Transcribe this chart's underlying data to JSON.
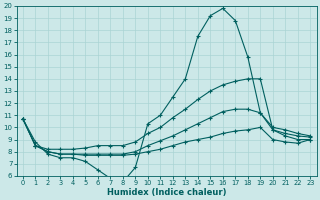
{
  "xlabel": "Humidex (Indice chaleur)",
  "xlim": [
    -0.5,
    23.5
  ],
  "ylim": [
    6,
    20
  ],
  "yticks": [
    6,
    7,
    8,
    9,
    10,
    11,
    12,
    13,
    14,
    15,
    16,
    17,
    18,
    19,
    20
  ],
  "xticks": [
    0,
    1,
    2,
    3,
    4,
    5,
    6,
    7,
    8,
    9,
    10,
    11,
    12,
    13,
    14,
    15,
    16,
    17,
    18,
    19,
    20,
    21,
    22,
    23
  ],
  "bg_color": "#cce8e8",
  "line_color": "#005f5f",
  "grid_color": "#aad4d4",
  "lines": [
    {
      "x": [
        0,
        1,
        2,
        3,
        4,
        5,
        6,
        7,
        8,
        9,
        10,
        11,
        12,
        13,
        14,
        15,
        16,
        17,
        18,
        19,
        20,
        21,
        22,
        23
      ],
      "y": [
        10.7,
        8.8,
        7.8,
        7.5,
        7.5,
        7.2,
        6.5,
        5.8,
        5.5,
        6.7,
        10.3,
        11.0,
        12.5,
        14.0,
        17.5,
        19.2,
        19.8,
        18.8,
        15.8,
        11.2,
        10.0,
        9.8,
        9.5,
        9.3
      ]
    },
    {
      "x": [
        0,
        1,
        2,
        3,
        4,
        5,
        6,
        7,
        8,
        9,
        10,
        11,
        12,
        13,
        14,
        15,
        16,
        17,
        18,
        19,
        20,
        21,
        22,
        23
      ],
      "y": [
        10.7,
        8.5,
        8.2,
        8.2,
        8.2,
        8.3,
        8.5,
        8.5,
        8.5,
        8.8,
        9.5,
        10.0,
        10.8,
        11.5,
        12.3,
        13.0,
        13.5,
        13.8,
        14.0,
        14.0,
        9.8,
        9.5,
        9.3,
        9.2
      ]
    },
    {
      "x": [
        0,
        1,
        2,
        3,
        4,
        5,
        6,
        7,
        8,
        9,
        10,
        11,
        12,
        13,
        14,
        15,
        16,
        17,
        18,
        19,
        20,
        21,
        22,
        23
      ],
      "y": [
        10.7,
        8.5,
        8.0,
        7.8,
        7.8,
        7.8,
        7.8,
        7.8,
        7.8,
        8.0,
        8.5,
        8.9,
        9.3,
        9.8,
        10.3,
        10.8,
        11.3,
        11.5,
        11.5,
        11.2,
        9.8,
        9.3,
        9.0,
        9.0
      ]
    },
    {
      "x": [
        0,
        1,
        2,
        3,
        4,
        5,
        6,
        7,
        8,
        9,
        10,
        11,
        12,
        13,
        14,
        15,
        16,
        17,
        18,
        19,
        20,
        21,
        22,
        23
      ],
      "y": [
        10.7,
        8.5,
        8.0,
        7.8,
        7.8,
        7.7,
        7.7,
        7.7,
        7.7,
        7.8,
        8.0,
        8.2,
        8.5,
        8.8,
        9.0,
        9.2,
        9.5,
        9.7,
        9.8,
        10.0,
        9.0,
        8.8,
        8.7,
        9.0
      ]
    }
  ]
}
